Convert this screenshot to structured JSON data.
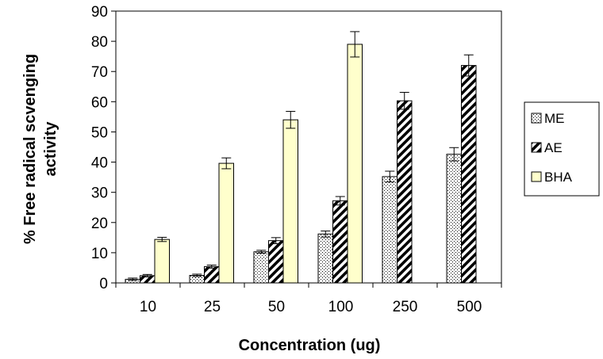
{
  "chart_data": {
    "type": "bar",
    "title": "",
    "xlabel": "Concentration (ug)",
    "ylabel_line1": "% Free radical scvenging",
    "ylabel_line2": "activity",
    "ylim": [
      0,
      90
    ],
    "y_ticks": [
      0,
      10,
      20,
      30,
      40,
      50,
      60,
      70,
      80,
      90
    ],
    "categories": [
      "10",
      "25",
      "50",
      "100",
      "250",
      "500"
    ],
    "legend_position": "right",
    "series": [
      {
        "name": "ME",
        "pattern": "dots",
        "color": "#ffffff",
        "values": [
          1.2,
          2.5,
          10.3,
          16.2,
          35.2,
          42.6
        ],
        "errors": [
          0.4,
          0.4,
          0.5,
          1.0,
          1.8,
          2.2
        ]
      },
      {
        "name": "AE",
        "pattern": "diagonal-stripes",
        "color": "#000000",
        "values": [
          2.4,
          5.4,
          14.0,
          27.2,
          60.3,
          72.0
        ],
        "errors": [
          0.4,
          0.5,
          1.0,
          1.4,
          2.8,
          3.5
        ]
      },
      {
        "name": "BHA",
        "pattern": "solid",
        "color": "#ffffcc",
        "values": [
          14.4,
          null,
          54.0,
          79.0,
          null,
          null
        ],
        "values_full": [
          14.4,
          39.6,
          54.0,
          79.0,
          null,
          null
        ],
        "errors": [
          0.7,
          1.8,
          2.8,
          4.2,
          null,
          null
        ]
      }
    ]
  }
}
